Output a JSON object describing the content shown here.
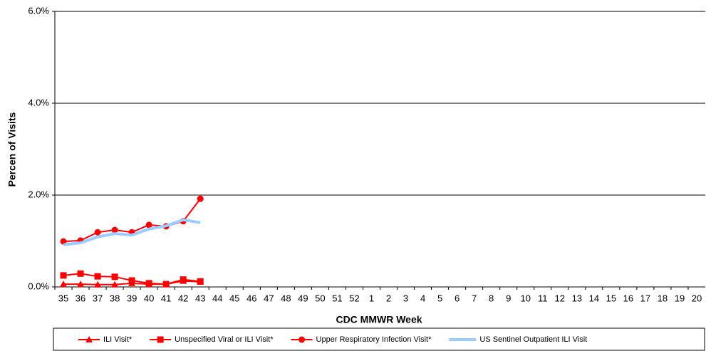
{
  "chart_data": {
    "type": "line",
    "y_label": "Percen of Visits",
    "x_label": "CDC MMWR Week",
    "categories": [
      "35",
      "36",
      "37",
      "38",
      "39",
      "40",
      "41",
      "42",
      "43",
      "44",
      "45",
      "46",
      "47",
      "48",
      "49",
      "50",
      "51",
      "52",
      "1",
      "2",
      "3",
      "4",
      "5",
      "6",
      "7",
      "8",
      "9",
      "10",
      "11",
      "12",
      "13",
      "14",
      "15",
      "16",
      "17",
      "18",
      "19",
      "20"
    ],
    "ylim": [
      0,
      6
    ],
    "yticks": [
      {
        "value": 0,
        "label": "0.0%"
      },
      {
        "value": 2,
        "label": "2.0%"
      },
      {
        "value": 4,
        "label": "4.0%"
      },
      {
        "value": 6,
        "label": "6.0%"
      }
    ],
    "grid": true,
    "legend": "bottom",
    "series": [
      {
        "name": "ILI Visit*",
        "color": "#ff0000",
        "marker": "triangle",
        "values": [
          0.06,
          0.06,
          0.05,
          0.05,
          0.08,
          0.06,
          0.06,
          0.13,
          0.11,
          null,
          null,
          null,
          null,
          null,
          null,
          null,
          null,
          null,
          null,
          null,
          null,
          null,
          null,
          null,
          null,
          null,
          null,
          null,
          null,
          null,
          null,
          null,
          null,
          null,
          null,
          null,
          null,
          null
        ]
      },
      {
        "name": "Unspecified Viral or ILI Visit*",
        "color": "#ff0000",
        "marker": "square",
        "values": [
          0.25,
          0.29,
          0.23,
          0.22,
          0.14,
          0.08,
          0.06,
          0.16,
          0.12,
          null,
          null,
          null,
          null,
          null,
          null,
          null,
          null,
          null,
          null,
          null,
          null,
          null,
          null,
          null,
          null,
          null,
          null,
          null,
          null,
          null,
          null,
          null,
          null,
          null,
          null,
          null,
          null,
          null
        ]
      },
      {
        "name": "Upper Respiratory Infection Visit*",
        "color": "#ff0000",
        "marker": "circle",
        "values": [
          0.99,
          1.01,
          1.19,
          1.24,
          1.19,
          1.35,
          1.32,
          1.43,
          1.92,
          null,
          null,
          null,
          null,
          null,
          null,
          null,
          null,
          null,
          null,
          null,
          null,
          null,
          null,
          null,
          null,
          null,
          null,
          null,
          null,
          null,
          null,
          null,
          null,
          null,
          null,
          null,
          null,
          null
        ]
      },
      {
        "name": "US Sentinel Outpatient ILI Visit",
        "color": "#99ccff",
        "marker": "none",
        "values": [
          0.92,
          0.96,
          1.09,
          1.16,
          1.13,
          1.26,
          1.33,
          1.46,
          1.4,
          null,
          null,
          null,
          null,
          null,
          null,
          null,
          null,
          null,
          null,
          null,
          null,
          null,
          null,
          null,
          null,
          null,
          null,
          null,
          null,
          null,
          null,
          null,
          null,
          null,
          null,
          null,
          null,
          null
        ]
      }
    ]
  }
}
